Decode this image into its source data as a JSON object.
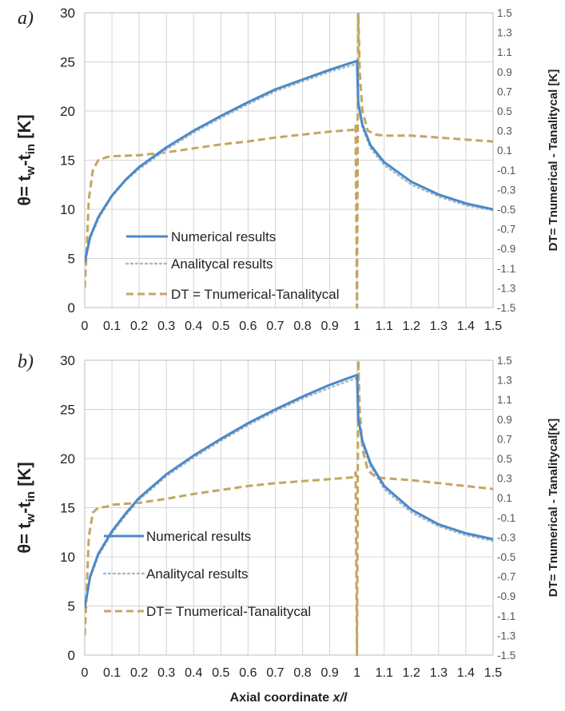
{
  "panel_labels": [
    "a)",
    "b)"
  ],
  "x_axis_label": "Axial coordinate x/l",
  "chart_data": [
    {
      "type": "line",
      "panel": "a)",
      "left_axis_label": "θ= tw-tin [K]",
      "right_axis_label": "DT= Tnumerical - Tanalitycal [K]",
      "xlim": [
        0,
        1.5
      ],
      "ylim_left": [
        0,
        30
      ],
      "ylim_right": [
        -1.5,
        1.5
      ],
      "x_ticks": [
        "0",
        "0.1",
        "0.2",
        "0.3",
        "0.4",
        "0.5",
        "0.6",
        "0.7",
        "0.8",
        "0.9",
        "1",
        "1.1",
        "1.2",
        "1.3",
        "1.4",
        "1.5"
      ],
      "y_ticks_left": [
        "0",
        "5",
        "10",
        "15",
        "20",
        "25",
        "30"
      ],
      "y_ticks_right": [
        "1.5",
        "1.3",
        "1.1",
        "0.9",
        "0.7",
        "0.5",
        "0.3",
        "0.1",
        "-0.1",
        "-0.3",
        "-0.5",
        "-0.7",
        "-0.9",
        "-1.1",
        "-1.3",
        "-1.5"
      ],
      "grid": true,
      "legend_position": "bottom-left",
      "series": [
        {
          "name": "Numerical results",
          "axis": "left",
          "style": "solid",
          "color": "#4a89c8",
          "x": [
            0,
            0.02,
            0.05,
            0.1,
            0.15,
            0.2,
            0.3,
            0.4,
            0.5,
            0.6,
            0.7,
            0.8,
            0.9,
            1.0,
            1.005,
            1.02,
            1.05,
            1.1,
            1.2,
            1.3,
            1.4,
            1.5
          ],
          "y": [
            4.6,
            7.2,
            9.2,
            11.4,
            13.0,
            14.3,
            16.3,
            18.0,
            19.5,
            20.9,
            22.2,
            23.2,
            24.2,
            25.1,
            20.8,
            18.6,
            16.5,
            14.8,
            12.8,
            11.5,
            10.6,
            10.0
          ]
        },
        {
          "name": "Analitycal results",
          "axis": "left",
          "style": "dotted",
          "color": "#a9b9c6",
          "x": [
            0,
            0.02,
            0.05,
            0.1,
            0.15,
            0.2,
            0.3,
            0.4,
            0.5,
            0.6,
            0.7,
            0.8,
            0.9,
            1.0,
            1.005,
            1.02,
            1.05,
            1.1,
            1.2,
            1.3,
            1.4,
            1.5
          ],
          "y": [
            4.5,
            7.0,
            9.0,
            11.3,
            12.9,
            14.1,
            16.1,
            17.8,
            19.3,
            20.7,
            22.0,
            23.0,
            24.0,
            24.8,
            20.5,
            18.3,
            16.2,
            14.5,
            12.5,
            11.3,
            10.4,
            9.9
          ]
        },
        {
          "name": "DT = Tnumerical-Tanalitycal",
          "axis": "right",
          "style": "dashed",
          "color": "#c4a660",
          "x": [
            0,
            0.005,
            0.015,
            0.03,
            0.05,
            0.08,
            0.1,
            0.2,
            0.3,
            0.4,
            0.5,
            0.6,
            0.7,
            0.8,
            0.9,
            0.99,
            0.995,
            1.0,
            1.005,
            1.01,
            1.02,
            1.04,
            1.07,
            1.1,
            1.2,
            1.3,
            1.4,
            1.5
          ],
          "y": [
            -1.3,
            -1.05,
            -0.4,
            -0.1,
            0.0,
            0.03,
            0.04,
            0.05,
            0.08,
            0.12,
            0.16,
            0.19,
            0.23,
            0.26,
            0.29,
            0.31,
            0.35,
            -1.5,
            1.5,
            0.9,
            0.5,
            0.3,
            0.26,
            0.25,
            0.25,
            0.23,
            0.21,
            0.19
          ]
        }
      ]
    },
    {
      "type": "line",
      "panel": "b)",
      "left_axis_label": "θ= tw-tin [K]",
      "right_axis_label": "DT= Tnumerical - Tanalitycal[K]",
      "xlim": [
        0,
        1.5
      ],
      "ylim_left": [
        0,
        30
      ],
      "ylim_right": [
        -1.5,
        1.5
      ],
      "x_ticks": [
        "0",
        "0.1",
        "0.2",
        "0.3",
        "0.4",
        "0.5",
        "0.6",
        "0.7",
        "0.8",
        "0.9",
        "1",
        "1.1",
        "1.2",
        "1.3",
        "1.4",
        "1.5"
      ],
      "y_ticks_left": [
        "0",
        "5",
        "10",
        "15",
        "20",
        "25",
        "30"
      ],
      "y_ticks_right": [
        "1.5",
        "1.3",
        "1.1",
        "0.9",
        "0.7",
        "0.5",
        "0.3",
        "0.1",
        "-0.1",
        "-0.3",
        "-0.5",
        "-0.7",
        "-0.9",
        "-1.1",
        "-1.3",
        "-1.5"
      ],
      "grid": true,
      "legend_position": "bottom-left",
      "series": [
        {
          "name": "Numerical results",
          "axis": "left",
          "style": "solid",
          "color": "#4a89c8",
          "x": [
            0,
            0.02,
            0.05,
            0.1,
            0.15,
            0.2,
            0.3,
            0.4,
            0.5,
            0.6,
            0.7,
            0.8,
            0.9,
            1.0,
            1.005,
            1.02,
            1.05,
            1.1,
            1.2,
            1.3,
            1.4,
            1.5
          ],
          "y": [
            4.8,
            8.0,
            10.3,
            12.6,
            14.4,
            16.0,
            18.4,
            20.3,
            22.0,
            23.6,
            25.0,
            26.3,
            27.5,
            28.5,
            24.0,
            21.8,
            19.5,
            17.2,
            14.8,
            13.3,
            12.4,
            11.8
          ]
        },
        {
          "name": "Analitycal results",
          "axis": "left",
          "style": "dotted",
          "color": "#a9b9c6",
          "x": [
            0,
            0.02,
            0.05,
            0.1,
            0.15,
            0.2,
            0.3,
            0.4,
            0.5,
            0.6,
            0.7,
            0.8,
            0.9,
            1.0,
            1.005,
            1.02,
            1.05,
            1.1,
            1.2,
            1.3,
            1.4,
            1.5
          ],
          "y": [
            4.7,
            7.8,
            10.1,
            12.4,
            14.2,
            15.8,
            18.2,
            20.1,
            21.8,
            23.4,
            24.8,
            26.1,
            27.2,
            28.2,
            23.7,
            21.5,
            19.2,
            16.9,
            14.5,
            13.1,
            12.2,
            11.6
          ]
        },
        {
          "name": "DT= Tnumerical-Tanalitycal",
          "axis": "right",
          "style": "dashed",
          "color": "#c4a660",
          "x": [
            0,
            0.005,
            0.015,
            0.03,
            0.05,
            0.08,
            0.1,
            0.2,
            0.3,
            0.4,
            0.5,
            0.6,
            0.7,
            0.8,
            0.9,
            0.99,
            0.995,
            1.0,
            1.005,
            1.01,
            1.02,
            1.04,
            1.07,
            1.1,
            1.2,
            1.3,
            1.4,
            1.5
          ],
          "y": [
            -1.3,
            -1.0,
            -0.3,
            -0.05,
            0.0,
            0.01,
            0.03,
            0.05,
            0.09,
            0.14,
            0.18,
            0.22,
            0.25,
            0.27,
            0.29,
            0.31,
            0.36,
            -1.5,
            1.5,
            1.0,
            0.6,
            0.38,
            0.31,
            0.3,
            0.28,
            0.25,
            0.22,
            0.19
          ]
        }
      ]
    }
  ]
}
